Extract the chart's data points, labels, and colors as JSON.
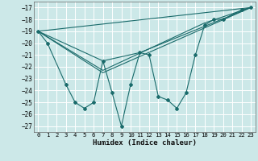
{
  "xlabel": "Humidex (Indice chaleur)",
  "bg_color": "#cce8e8",
  "line_color": "#1a6b6b",
  "grid_color": "#ffffff",
  "xlim": [
    -0.5,
    23.5
  ],
  "ylim": [
    -27.5,
    -16.5
  ],
  "yticks": [
    -27,
    -26,
    -25,
    -24,
    -23,
    -22,
    -21,
    -20,
    -19,
    -18,
    -17
  ],
  "xticks": [
    0,
    1,
    2,
    3,
    4,
    5,
    6,
    7,
    8,
    9,
    10,
    11,
    12,
    13,
    14,
    15,
    16,
    17,
    18,
    19,
    20,
    21,
    22,
    23
  ],
  "main_series": [
    [
      0,
      -19.0
    ],
    [
      1,
      -20.0
    ],
    [
      3,
      -23.5
    ],
    [
      4,
      -25.0
    ],
    [
      5,
      -25.5
    ],
    [
      6,
      -25.0
    ],
    [
      7,
      -21.5
    ],
    [
      8,
      -24.2
    ],
    [
      9,
      -27.0
    ],
    [
      10,
      -23.5
    ],
    [
      11,
      -20.8
    ],
    [
      12,
      -21.0
    ],
    [
      13,
      -24.5
    ],
    [
      14,
      -24.8
    ],
    [
      15,
      -25.5
    ],
    [
      16,
      -24.2
    ],
    [
      17,
      -21.0
    ],
    [
      18,
      -18.5
    ],
    [
      19,
      -18.0
    ],
    [
      20,
      -18.0
    ],
    [
      22,
      -17.2
    ],
    [
      23,
      -17.0
    ]
  ],
  "diag_lines": [
    [
      [
        0,
        -19.0
      ],
      [
        23,
        -17.0
      ]
    ],
    [
      [
        0,
        -19.0
      ],
      [
        7,
        -22.5
      ],
      [
        23,
        -17.0
      ]
    ],
    [
      [
        0,
        -19.0
      ],
      [
        7,
        -21.5
      ],
      [
        11,
        -20.8
      ],
      [
        23,
        -17.0
      ]
    ],
    [
      [
        0,
        -19.0
      ],
      [
        7,
        -22.3
      ],
      [
        18,
        -18.3
      ],
      [
        23,
        -17.0
      ]
    ]
  ]
}
